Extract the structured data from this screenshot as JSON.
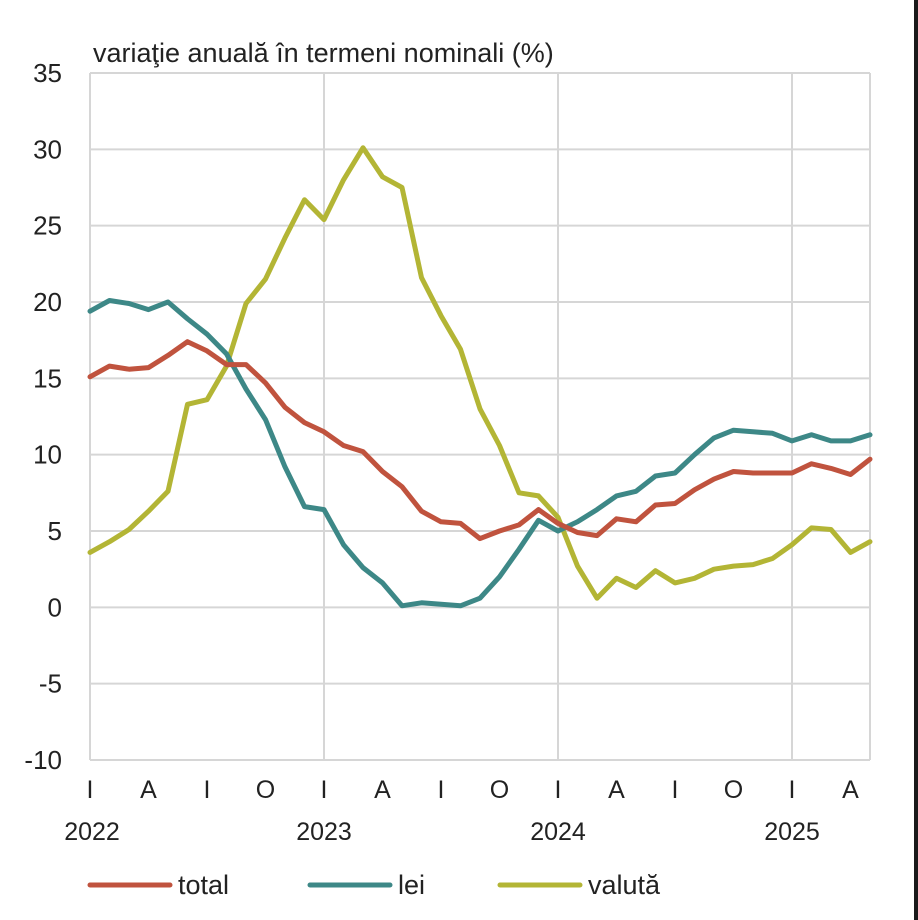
{
  "chart_data": {
    "type": "line",
    "title": "",
    "ylabel": "variaţie anuală în termeni nominali (%)",
    "xlabel": "",
    "ylim": [
      -10,
      35
    ],
    "yticks": [
      -10,
      -5,
      0,
      5,
      10,
      15,
      20,
      25,
      30,
      35
    ],
    "grid": true,
    "legend_position": "bottom",
    "x_quarter_labels": [
      "I",
      "A",
      "I",
      "O",
      "I",
      "A",
      "I",
      "O",
      "I",
      "A",
      "I",
      "O",
      "I",
      "A"
    ],
    "x_year_labels": [
      "2022",
      "2023",
      "2024",
      "2025"
    ],
    "x": [
      "2022-01",
      "2022-02",
      "2022-03",
      "2022-04",
      "2022-05",
      "2022-06",
      "2022-07",
      "2022-08",
      "2022-09",
      "2022-10",
      "2022-11",
      "2022-12",
      "2023-01",
      "2023-02",
      "2023-03",
      "2023-04",
      "2023-05",
      "2023-06",
      "2023-07",
      "2023-08",
      "2023-09",
      "2023-10",
      "2023-11",
      "2023-12",
      "2024-01",
      "2024-02",
      "2024-03",
      "2024-04",
      "2024-05",
      "2024-06",
      "2024-07",
      "2024-08",
      "2024-09",
      "2024-10",
      "2024-11",
      "2024-12",
      "2025-01",
      "2025-02",
      "2025-03",
      "2025-04",
      "2025-05"
    ],
    "series": [
      {
        "name": "total",
        "color": "#c0533e",
        "values": [
          15.1,
          15.8,
          15.6,
          15.7,
          16.5,
          17.4,
          16.8,
          15.9,
          15.9,
          14.7,
          13.1,
          12.1,
          11.5,
          10.6,
          10.2,
          8.9,
          7.9,
          6.3,
          5.6,
          5.5,
          4.5,
          5.0,
          5.4,
          6.4,
          5.5,
          4.9,
          4.7,
          5.8,
          5.6,
          6.7,
          6.8,
          7.7,
          8.4,
          8.9,
          8.8,
          8.8,
          8.8,
          9.4,
          9.1,
          8.7,
          9.7
        ]
      },
      {
        "name": "lei",
        "color": "#3d8887",
        "values": [
          19.4,
          20.1,
          19.9,
          19.5,
          20.0,
          18.9,
          17.9,
          16.6,
          14.3,
          12.3,
          9.2,
          6.6,
          6.4,
          4.1,
          2.6,
          1.6,
          0.1,
          0.3,
          0.2,
          0.1,
          0.6,
          2.0,
          3.8,
          5.7,
          5.0,
          5.6,
          6.4,
          7.3,
          7.6,
          8.6,
          8.8,
          10.0,
          11.1,
          11.6,
          11.5,
          11.4,
          10.9,
          11.3,
          10.9,
          10.9,
          11.3
        ]
      },
      {
        "name": "valută",
        "color": "#b3b535",
        "values": [
          3.6,
          4.3,
          5.1,
          6.3,
          7.6,
          13.3,
          13.6,
          15.8,
          19.9,
          21.5,
          24.2,
          26.7,
          25.4,
          28.0,
          30.1,
          28.2,
          27.5,
          21.6,
          19.1,
          16.9,
          13.0,
          10.6,
          7.5,
          7.3,
          5.9,
          2.7,
          0.6,
          1.9,
          1.3,
          2.4,
          1.6,
          1.9,
          2.5,
          2.7,
          2.8,
          3.2,
          4.1,
          5.2,
          5.1,
          3.6,
          4.3
        ]
      }
    ]
  }
}
